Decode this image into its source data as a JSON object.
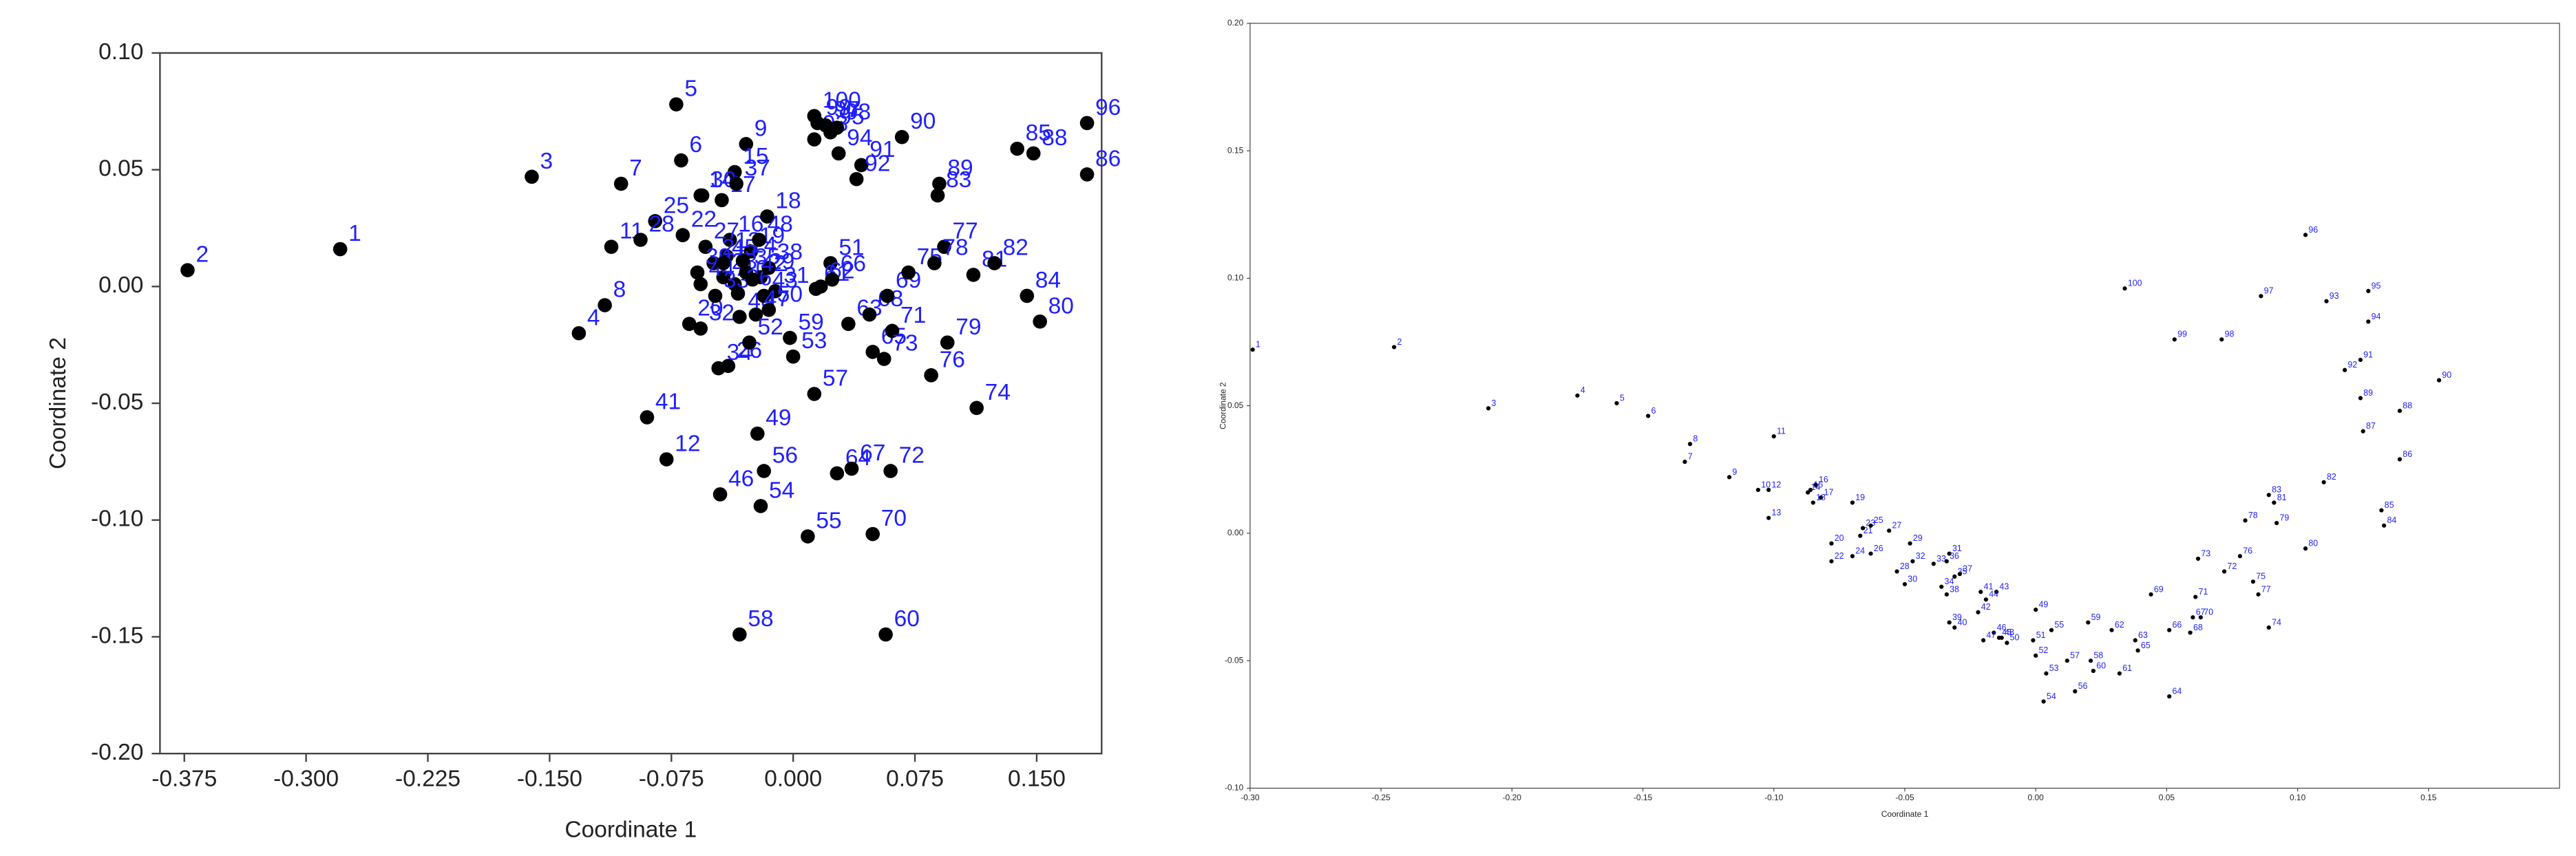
{
  "chart_data": [
    {
      "type": "scatter",
      "xlabel": "Coordinate 1",
      "ylabel": "Coordinate 2",
      "color": "#000000",
      "label_color": "#1f1fff",
      "xlim": [
        -0.39,
        0.19
      ],
      "ylim": [
        -0.2,
        0.1
      ],
      "xticks": [
        -0.375,
        {
          "value": -0.3,
          "label": "-0.300"
        },
        -0.225,
        {
          "value": -0.15,
          "label": "-0.150"
        },
        -0.075,
        {
          "value": 0,
          "label": "0.000"
        },
        0.075,
        {
          "value": 0.15,
          "label": "0.150"
        }
      ],
      "yticks": [
        {
          "value": 0.1,
          "label": "0.10"
        },
        0.05,
        {
          "value": 0,
          "label": "0.00"
        },
        -0.05,
        {
          "value": -0.1,
          "label": "-0.10"
        },
        -0.15,
        {
          "value": -0.2,
          "label": "-0.20"
        }
      ],
      "labels": [
        "1",
        "2",
        "3",
        "4",
        "5",
        "6",
        "7",
        "8",
        "9",
        "10",
        "11",
        "12",
        "13",
        "14",
        "15",
        "16",
        "17",
        "18",
        "19",
        "20",
        "21",
        "22",
        "23",
        "24",
        "25",
        "26",
        "27",
        "28",
        "29",
        "30",
        "31",
        "32",
        "33",
        "34",
        "35",
        "36",
        "37",
        "38",
        "39",
        "40",
        "41",
        "42",
        "43",
        "44",
        "45",
        "46",
        "47",
        "48",
        "49",
        "50",
        "51",
        "52",
        "53",
        "54",
        "55",
        "56",
        "57",
        "58",
        "59",
        "60",
        "61",
        "62",
        "63",
        "64",
        "65",
        "66",
        "67",
        "68",
        "69",
        "70",
        "71",
        "72",
        "73",
        "74",
        "75",
        "76",
        "77",
        "78",
        "79",
        "80",
        "81",
        "82",
        "83",
        "84",
        "85",
        "86",
        "88",
        "89",
        "90",
        "91",
        "92",
        "93",
        "94",
        "95",
        "96",
        "97",
        "98",
        "99",
        "100"
      ],
      "x": [
        -0.279,
        -0.373,
        -0.161,
        -0.132,
        -0.072,
        -0.069,
        -0.106,
        -0.116,
        -0.029,
        -0.036,
        -0.112,
        -0.078,
        -0.041,
        -0.057,
        -0.036,
        -0.039,
        -0.044,
        -0.016,
        -0.026,
        -0.064,
        -0.049,
        -0.068,
        -0.043,
        -0.031,
        -0.085,
        -0.04,
        -0.054,
        -0.094,
        -0.02,
        -0.056,
        -0.011,
        -0.057,
        -0.048,
        -0.046,
        -0.029,
        -0.034,
        -0.035,
        -0.015,
        -0.059,
        -0.033,
        -0.09,
        -0.025,
        -0.018,
        -0.057,
        -0.043,
        -0.045,
        -0.023,
        -0.021,
        -0.022,
        -0.015,
        0.023,
        -0.027,
        0.0,
        -0.02,
        0.009,
        -0.018,
        0.013,
        -0.033,
        -0.002,
        0.057,
        0.014,
        0.017,
        0.034,
        0.027,
        0.049,
        0.024,
        0.036,
        0.047,
        0.058,
        0.049,
        0.061,
        0.06,
        0.056,
        0.113,
        0.071,
        0.085,
        0.093,
        0.087,
        0.095,
        0.152,
        0.111,
        0.124,
        0.089,
        0.144,
        0.138,
        0.181,
        0.148,
        0.09,
        0.067,
        0.042,
        0.039,
        0.013,
        0.028,
        0.023,
        0.181,
        0.02,
        0.027,
        0.015,
        0.013
      ],
      "values": [
        0.016,
        0.007,
        0.047,
        -0.02,
        0.078,
        0.054,
        0.044,
        -0.008,
        0.061,
        0.001,
        0.017,
        -0.074,
        0.013,
        0.039,
        0.049,
        0.02,
        0.037,
        0.03,
        0.015,
        -0.016,
        0.01,
        0.022,
        0.004,
        0.011,
        0.028,
        -0.034,
        0.017,
        0.02,
        0.004,
        0.039,
        -0.002,
        -0.018,
        -0.004,
        -0.035,
        0.006,
        -0.003,
        0.044,
        0.008,
        0.006,
        -0.013,
        -0.056,
        0.003,
        -0.004,
        0.001,
        0.01,
        -0.089,
        -0.012,
        0.02,
        -0.063,
        -0.01,
        0.01,
        -0.024,
        -0.03,
        -0.094,
        -0.107,
        -0.079,
        -0.046,
        -0.149,
        -0.022,
        -0.149,
        -0.001,
        0.0,
        -0.016,
        -0.08,
        -0.028,
        0.003,
        -0.078,
        -0.012,
        -0.004,
        -0.106,
        -0.019,
        -0.079,
        -0.031,
        -0.052,
        0.006,
        -0.038,
        0.017,
        0.01,
        -0.024,
        -0.015,
        0.005,
        0.01,
        0.039,
        -0.004,
        0.059,
        0.048,
        0.057,
        0.044,
        0.064,
        0.052,
        0.046,
        0.063,
        0.057,
        0.066,
        0.07,
        0.069,
        0.068,
        0.07,
        0.073
      ]
    },
    {
      "type": "scatter",
      "xlabel": "Coordinate 1",
      "ylabel": "Coordinate 2",
      "color": "#000000",
      "label_color": "#1f1fff",
      "xlim": [
        -0.3,
        0.2
      ],
      "ylim": [
        -0.1,
        0.2
      ],
      "xticks": [
        {
          "value": -0.3,
          "label": "-0.30"
        },
        -0.25,
        {
          "value": -0.2,
          "label": "-0.20"
        },
        -0.15,
        {
          "value": -0.1,
          "label": "-0.10"
        },
        -0.05,
        {
          "value": 0,
          "label": "0.00"
        },
        0.05,
        {
          "value": 0.1,
          "label": "0.10"
        },
        0.15
      ],
      "yticks": [
        {
          "value": -0.1,
          "label": "-0.10"
        },
        -0.05,
        {
          "value": 0,
          "label": "0.00"
        },
        0.05,
        {
          "value": 0.1,
          "label": "0.10"
        },
        0.15,
        {
          "value": 0.2,
          "label": "0.20"
        }
      ],
      "labels": [
        "1",
        "2",
        "3",
        "4",
        "5",
        "6",
        "7",
        "8",
        "9",
        "10",
        "11",
        "12",
        "13",
        "14",
        "15",
        "16",
        "17",
        "18",
        "19",
        "20",
        "21",
        "22",
        "23",
        "24",
        "25",
        "26",
        "27",
        "28",
        "29",
        "30",
        "31",
        "32",
        "33",
        "34",
        "35",
        "36",
        "37",
        "38",
        "39",
        "40",
        "41",
        "42",
        "43",
        "44",
        "45",
        "46",
        "47",
        "48",
        "49",
        "50",
        "51",
        "52",
        "53",
        "54",
        "55",
        "56",
        "57",
        "58",
        "59",
        "60",
        "61",
        "62",
        "63",
        "64",
        "65",
        "66",
        "67",
        "68",
        "69",
        "70",
        "71",
        "72",
        "73",
        "74",
        "75",
        "76",
        "77",
        "78",
        "79",
        "80",
        "81",
        "82",
        "83",
        "84",
        "85",
        "86",
        "87",
        "88",
        "89",
        "90",
        "91",
        "92",
        "93",
        "94",
        "95",
        "96",
        "97",
        "98",
        "99",
        "100"
      ],
      "x": [
        -0.299,
        -0.245,
        -0.209,
        -0.175,
        -0.16,
        -0.148,
        -0.134,
        -0.132,
        -0.117,
        -0.106,
        -0.1,
        -0.102,
        -0.102,
        -0.087,
        -0.086,
        -0.084,
        -0.082,
        -0.085,
        -0.07,
        -0.078,
        -0.067,
        -0.078,
        -0.066,
        -0.07,
        -0.063,
        -0.063,
        -0.056,
        -0.053,
        -0.048,
        -0.05,
        -0.033,
        -0.047,
        -0.039,
        -0.036,
        -0.031,
        -0.034,
        -0.029,
        -0.034,
        -0.033,
        -0.031,
        -0.021,
        -0.022,
        -0.015,
        -0.019,
        -0.014,
        -0.016,
        -0.02,
        -0.013,
        0.0,
        -0.011,
        -0.001,
        0.0,
        0.004,
        0.003,
        0.006,
        0.015,
        0.012,
        0.021,
        0.02,
        0.022,
        0.032,
        0.029,
        0.038,
        0.051,
        0.039,
        0.051,
        0.06,
        0.059,
        0.044,
        0.063,
        0.061,
        0.072,
        0.062,
        0.089,
        0.083,
        0.078,
        0.085,
        0.08,
        0.092,
        0.103,
        0.091,
        0.11,
        0.089,
        0.133,
        0.132,
        0.139,
        0.125,
        0.139,
        0.124,
        0.154,
        0.124,
        0.118,
        0.111,
        0.127,
        0.127,
        0.103,
        0.086,
        0.071,
        0.053,
        0.034
      ],
      "values": [
        0.072,
        0.073,
        0.049,
        0.054,
        0.051,
        0.046,
        0.028,
        0.035,
        0.022,
        0.017,
        0.038,
        0.017,
        0.006,
        0.016,
        0.017,
        0.019,
        0.014,
        0.012,
        0.012,
        -0.004,
        -0.001,
        -0.011,
        0.002,
        -0.009,
        0.003,
        -0.008,
        0.001,
        -0.015,
        -0.004,
        -0.02,
        -0.008,
        -0.011,
        -0.012,
        -0.021,
        -0.017,
        -0.011,
        -0.016,
        -0.024,
        -0.035,
        -0.037,
        -0.023,
        -0.031,
        -0.023,
        -0.026,
        -0.041,
        -0.039,
        -0.042,
        -0.041,
        -0.03,
        -0.043,
        -0.042,
        -0.048,
        -0.055,
        -0.066,
        -0.038,
        -0.062,
        -0.05,
        -0.05,
        -0.035,
        -0.054,
        -0.055,
        -0.038,
        -0.042,
        -0.064,
        -0.046,
        -0.038,
        -0.033,
        -0.039,
        -0.024,
        -0.033,
        -0.025,
        -0.015,
        -0.01,
        -0.037,
        -0.019,
        -0.009,
        -0.024,
        0.005,
        0.004,
        -0.006,
        0.012,
        0.02,
        0.015,
        0.003,
        0.009,
        0.029,
        0.04,
        0.048,
        0.053,
        0.06,
        0.068,
        0.064,
        0.091,
        0.083,
        0.095,
        0.117,
        0.093,
        0.076,
        0.076,
        0.096
      ]
    }
  ]
}
